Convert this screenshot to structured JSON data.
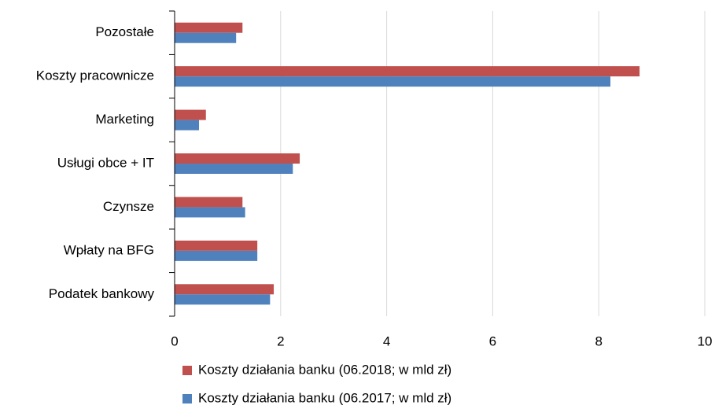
{
  "chart_data": {
    "type": "bar",
    "orientation": "horizontal",
    "categories": [
      "Pozostałe",
      "Koszty pracownicze",
      "Marketing",
      "Usługi obce + IT",
      "Czynsze",
      "Wpłaty na BFG",
      "Podatek bankowy"
    ],
    "series": [
      {
        "name": "Koszty działania banku (06.2018; w mld zł)",
        "color": "#c0504d",
        "values": [
          1.28,
          8.77,
          0.59,
          2.36,
          1.28,
          1.56,
          1.87
        ]
      },
      {
        "name": "Koszty działania banku (06.2017; w mld zł)",
        "color": "#4f81bd",
        "values": [
          1.16,
          8.22,
          0.46,
          2.23,
          1.33,
          1.56,
          1.8
        ]
      }
    ],
    "xlim": [
      0,
      10
    ],
    "xticks": [
      0,
      2,
      4,
      6,
      8,
      10
    ],
    "grid": true,
    "legend": "bottom"
  }
}
